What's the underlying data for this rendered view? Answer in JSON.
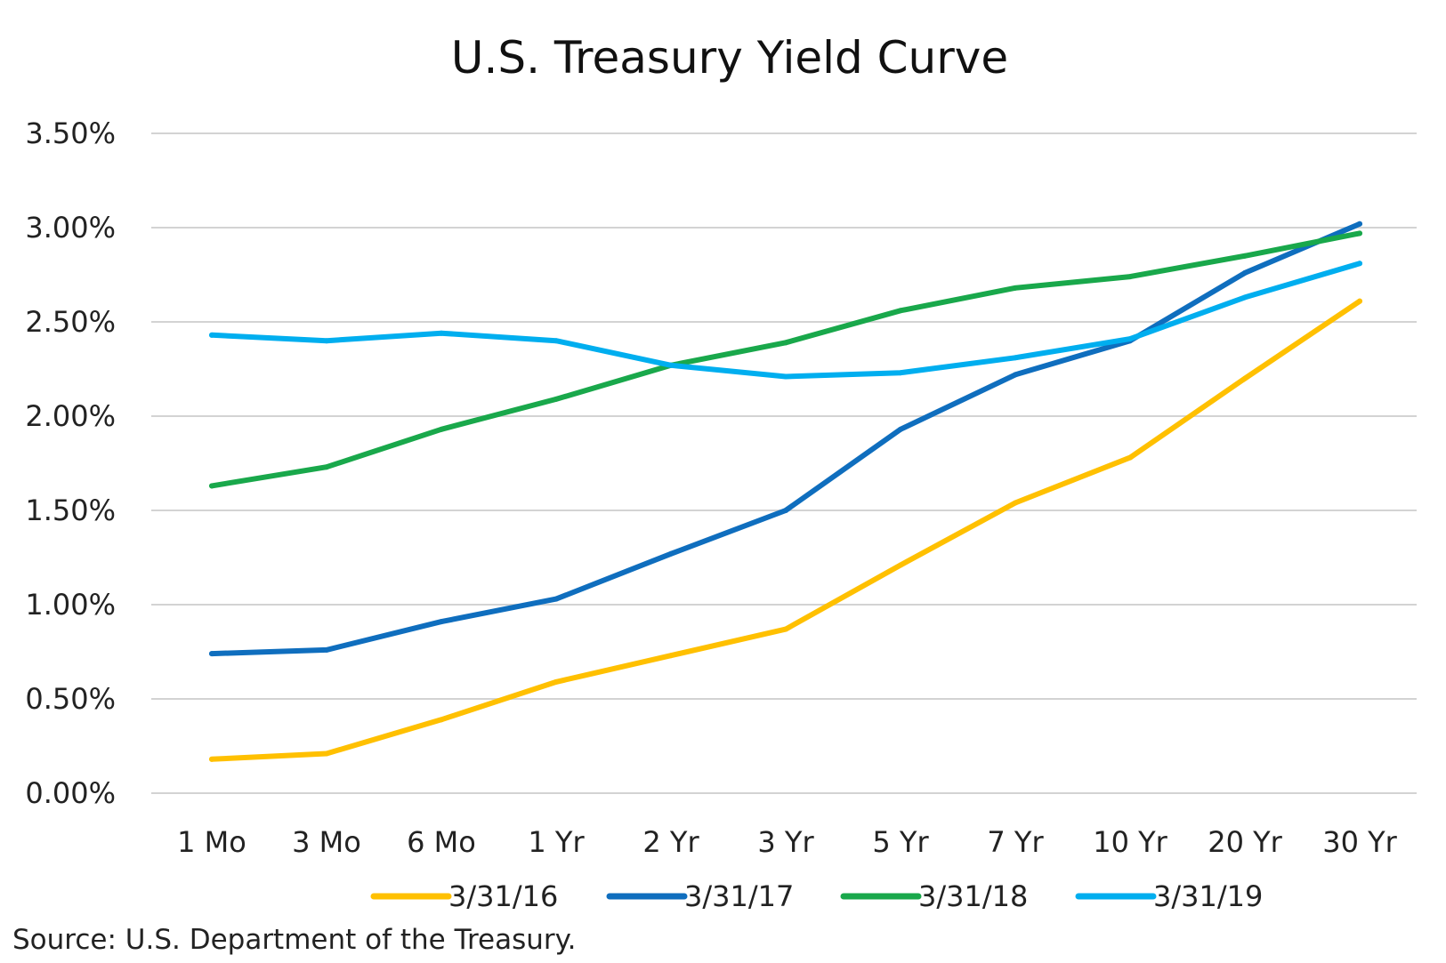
{
  "chart_data": {
    "type": "line",
    "title": "U.S. Treasury Yield Curve",
    "categories": [
      "1 Mo",
      "3 Mo",
      "6 Mo",
      "1 Yr",
      "2 Yr",
      "3 Yr",
      "5 Yr",
      "7 Yr",
      "10 Yr",
      "20 Yr",
      "30 Yr"
    ],
    "y_ticks": [
      "0.00%",
      "0.50%",
      "1.00%",
      "1.50%",
      "2.00%",
      "2.50%",
      "3.00%",
      "3.50%"
    ],
    "ylim": [
      0,
      3.5
    ],
    "grid": true,
    "legend_position": "bottom",
    "series": [
      {
        "name": "3/31/16",
        "color": "#FFC000",
        "values": [
          0.18,
          0.21,
          0.39,
          0.59,
          0.73,
          0.87,
          1.21,
          1.54,
          1.78,
          2.2,
          2.61
        ]
      },
      {
        "name": "3/31/17",
        "color": "#0F6EBE",
        "values": [
          0.74,
          0.76,
          0.91,
          1.03,
          1.27,
          1.5,
          1.93,
          2.22,
          2.4,
          2.76,
          3.02
        ]
      },
      {
        "name": "3/31/18",
        "color": "#19A84B",
        "values": [
          1.63,
          1.73,
          1.93,
          2.09,
          2.27,
          2.39,
          2.56,
          2.68,
          2.74,
          2.85,
          2.97
        ]
      },
      {
        "name": "3/31/19",
        "color": "#00AEEF",
        "values": [
          2.43,
          2.4,
          2.44,
          2.4,
          2.27,
          2.21,
          2.23,
          2.31,
          2.41,
          2.63,
          2.81
        ]
      }
    ]
  },
  "source_note": "Source: U.S. Department of the Treasury."
}
